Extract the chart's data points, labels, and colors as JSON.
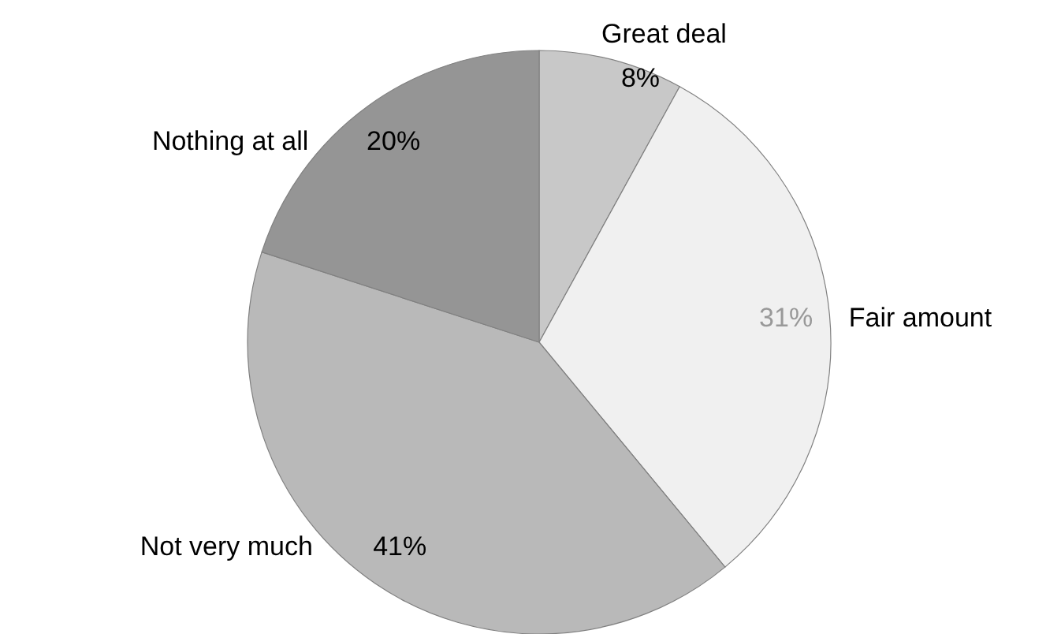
{
  "chart_data": {
    "type": "pie",
    "categories": [
      "Great deal",
      "Fair amount",
      "Not very much",
      "Nothing at all"
    ],
    "values": [
      8,
      31,
      41,
      20
    ],
    "colors": [
      "#c8c8c8",
      "#f0f0f0",
      "#b9b9b9",
      "#959595"
    ],
    "value_labels": [
      "8%",
      "31%",
      "41%",
      "20%"
    ]
  }
}
